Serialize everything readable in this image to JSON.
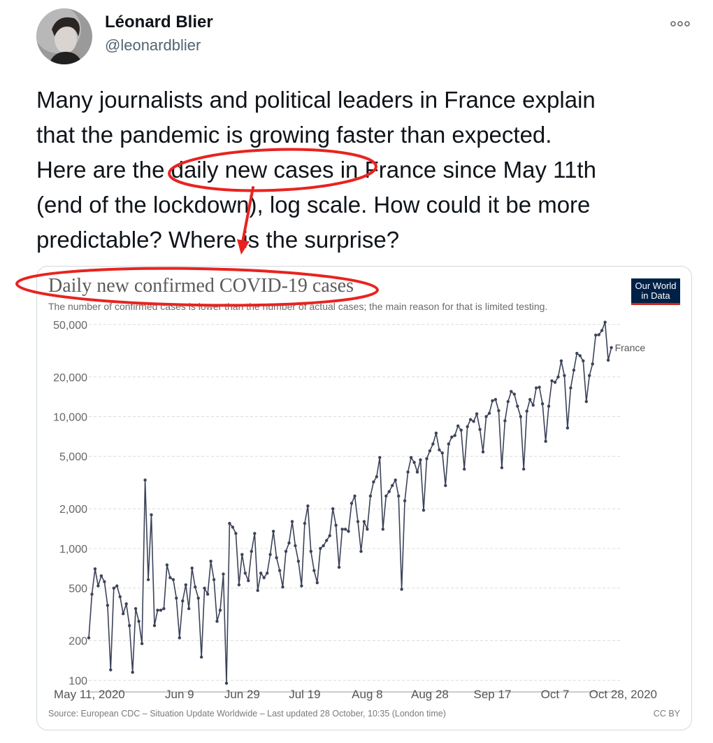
{
  "tweet": {
    "display_name": "Léonard Blier",
    "handle": "@leonardblier",
    "more_icon": "more-horizontal-icon",
    "text_lines": [
      "Many journalists and political leaders in France explain",
      "that the pandemic is growing faster than expected.",
      "Here are the daily new cases in France since May 11th",
      "(end of the lockdown), log scale. How could it be more",
      "predictable? Where is the surprise?"
    ],
    "annotation_color": "#e8231f"
  },
  "card": {
    "title": "Daily new confirmed COVID-19 cases",
    "subtitle": "The number of confirmed cases is lower than the number of actual cases; the main reason for that is limited testing.",
    "logo_line1": "Our World",
    "logo_line2": "in Data",
    "source": "Source: European CDC – Situation Update Worldwide – Last updated 28 October, 10:35 (London time)",
    "license": "CC BY"
  },
  "chart_data": {
    "type": "line",
    "scale": "log",
    "grid": true,
    "line_color": "#3c4358",
    "ylim": [
      90,
      55000
    ],
    "yticks": [
      100,
      200,
      500,
      1000,
      2000,
      5000,
      10000,
      20000,
      50000
    ],
    "ytick_labels": [
      "100",
      "200",
      "500",
      "1,000",
      "2,000",
      "5,000",
      "10,000",
      "20,000",
      "50,000"
    ],
    "xlim": [
      "2020-05-11",
      "2020-10-28"
    ],
    "xticks": [
      "2020-05-11",
      "2020-06-09",
      "2020-06-29",
      "2020-07-19",
      "2020-08-08",
      "2020-08-28",
      "2020-09-17",
      "2020-10-07",
      "2020-10-28"
    ],
    "xtick_labels": [
      "May 11, 2020",
      "Jun 9",
      "Jun 29",
      "Jul 19",
      "Aug 8",
      "Aug 28",
      "Sep 17",
      "Oct 7",
      "Oct 28, 2020"
    ],
    "series": [
      {
        "name": "France",
        "start": "2020-05-11",
        "values": [
          210,
          450,
          700,
          520,
          620,
          560,
          370,
          120,
          500,
          520,
          430,
          320,
          380,
          260,
          115,
          350,
          280,
          190,
          3300,
          580,
          1800,
          260,
          340,
          340,
          350,
          750,
          600,
          580,
          420,
          210,
          400,
          530,
          350,
          710,
          510,
          420,
          150,
          500,
          450,
          800,
          580,
          280,
          340,
          640,
          95,
          1550,
          1450,
          1300,
          530,
          900,
          650,
          570,
          950,
          1300,
          480,
          650,
          600,
          650,
          900,
          1350,
          850,
          680,
          510,
          950,
          1100,
          1600,
          1050,
          800,
          520,
          1550,
          2100,
          950,
          680,
          550,
          1000,
          1050,
          1150,
          1250,
          2000,
          1500,
          720,
          1400,
          1400,
          1350,
          2200,
          2500,
          1600,
          950,
          1600,
          1400,
          2500,
          3200,
          3500,
          4900,
          1400,
          2500,
          2700,
          3000,
          3300,
          2500,
          490,
          2300,
          3800,
          4900,
          4500,
          3800,
          4700,
          1950,
          4800,
          5500,
          6200,
          7500,
          5600,
          5300,
          3000,
          6200,
          7000,
          7200,
          8500,
          7900,
          4000,
          8400,
          9500,
          9200,
          10500,
          8000,
          5400,
          10000,
          10600,
          13200,
          13500,
          11100,
          4100,
          9300,
          13000,
          15500,
          14800,
          12000,
          10000,
          4000,
          11000,
          13500,
          12200,
          16500,
          16700,
          12500,
          6500,
          12000,
          18700,
          18200,
          20000,
          26500,
          20500,
          8200,
          16500,
          22500,
          30200,
          29000,
          26500,
          13000,
          20500,
          25100,
          41500,
          41800,
          45000,
          52000,
          26800,
          33400
        ]
      }
    ]
  }
}
